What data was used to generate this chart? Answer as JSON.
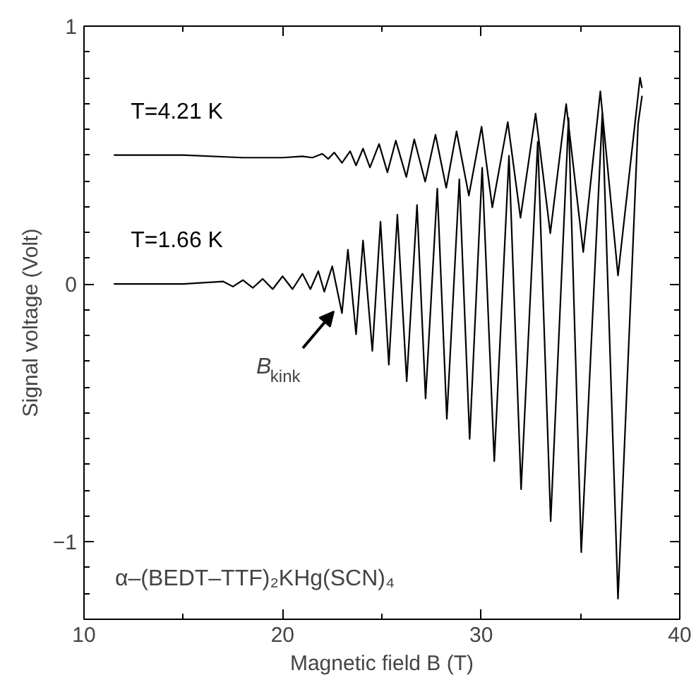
{
  "chart_data": {
    "type": "line",
    "xlabel": "Magnetic field B (T)",
    "ylabel": "Signal voltage (Volt)",
    "xlim": [
      10,
      40
    ],
    "ylim": [
      -1.3,
      1
    ],
    "xticks": [
      10,
      20,
      30,
      40
    ],
    "yticks": [
      {
        "value": -1,
        "label": "−1"
      },
      0,
      1
    ],
    "grid": false,
    "legend": "left",
    "marker": "none",
    "line_style": "solid",
    "series": [
      {
        "name": "T=4.21 K",
        "color": "#000000",
        "x": [
          11.5,
          15,
          18,
          20,
          21,
          21.5,
          22,
          22.3,
          22.6,
          22.99,
          23.4,
          23.7,
          24.05,
          24.4,
          24.86,
          25.28,
          25.7,
          26.23,
          26.63,
          27.18,
          27.7,
          28.24,
          28.76,
          29.38,
          30.02,
          30.56,
          31.34,
          31.98,
          32.74,
          33.48,
          34.28,
          35.14,
          36.0,
          36.89,
          38.0,
          38.1
        ],
        "values": [
          0.5,
          0.5,
          0.49,
          0.49,
          0.495,
          0.49,
          0.505,
          0.485,
          0.51,
          0.47,
          0.515,
          0.46,
          0.525,
          0.452,
          0.543,
          0.433,
          0.556,
          0.415,
          0.561,
          0.397,
          0.579,
          0.373,
          0.592,
          0.343,
          0.61,
          0.297,
          0.628,
          0.257,
          0.661,
          0.197,
          0.698,
          0.124,
          0.747,
          0.033,
          0.8,
          0.76
        ]
      },
      {
        "name": "T=1.66 K",
        "color": "#000000",
        "x": [
          11.5,
          13,
          15,
          17,
          17.5,
          18,
          18.5,
          19,
          19.5,
          20,
          20.5,
          21,
          21.4,
          21.8,
          22.1,
          22.5,
          22.99,
          23.29,
          23.7,
          24.05,
          24.52,
          24.93,
          25.35,
          25.78,
          26.25,
          26.77,
          27.2,
          27.79,
          28.27,
          28.9,
          29.42,
          30.05,
          30.66,
          31.4,
          32.01,
          32.85,
          33.5,
          34.4,
          35.04,
          36.1,
          36.89,
          37.9,
          38.1
        ],
        "values": [
          0,
          0,
          0,
          0.01,
          -0.01,
          0.015,
          -0.015,
          0.02,
          -0.02,
          0.03,
          -0.02,
          0.04,
          -0.02,
          0.05,
          -0.03,
          0.069,
          -0.113,
          0.133,
          -0.195,
          0.169,
          -0.259,
          0.242,
          -0.313,
          0.269,
          -0.377,
          0.306,
          -0.444,
          0.37,
          -0.523,
          0.406,
          -0.601,
          0.451,
          -0.687,
          0.497,
          -0.796,
          0.552,
          -0.92,
          0.643,
          -1.04,
          0.661,
          -1.22,
          0.62,
          0.73
        ]
      }
    ],
    "annotations": [
      "B$_{kink}$",
      "α–(BEDT–TTF)₂KHg(SCN)₄"
    ]
  }
}
